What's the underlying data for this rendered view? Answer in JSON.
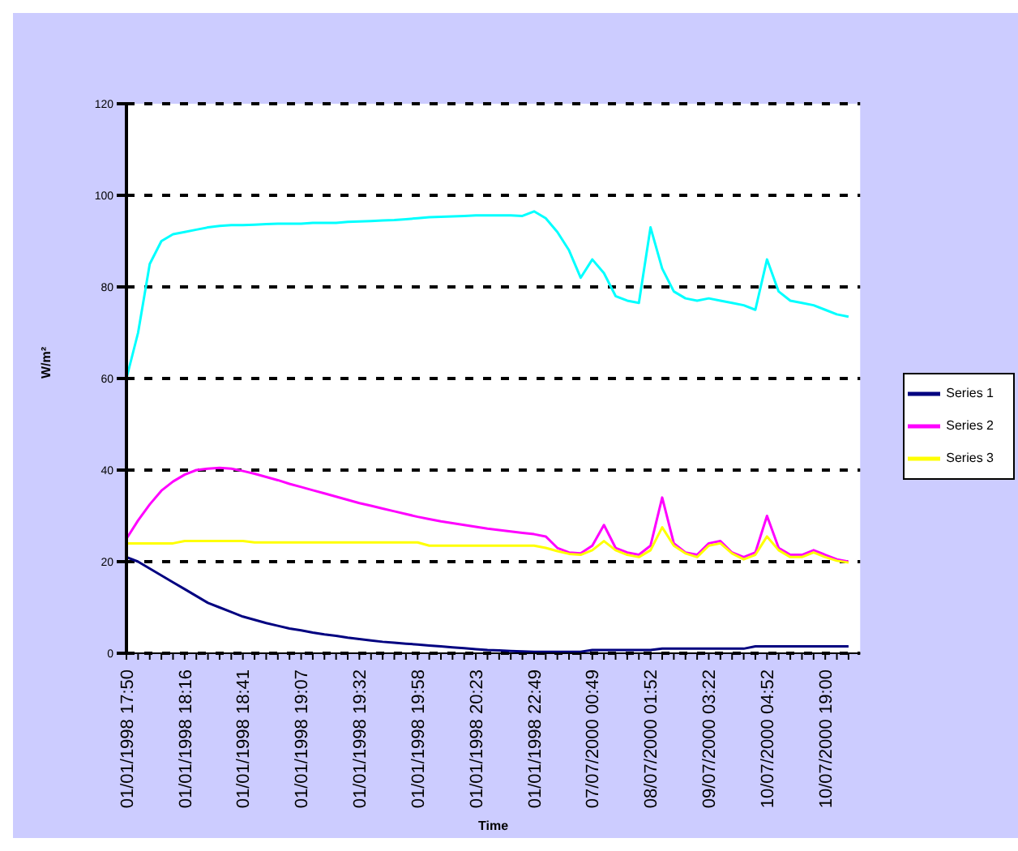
{
  "chart_data": {
    "type": "line",
    "xlabel": "Time",
    "ylabel": "W/m²",
    "categories": [
      "01/01/1998 17:50",
      null,
      null,
      null,
      null,
      "01/01/1998 18:16",
      null,
      null,
      null,
      null,
      "01/01/1998 18:41",
      null,
      null,
      null,
      null,
      "01/01/1998 19:07",
      null,
      null,
      null,
      null,
      "01/01/1998 19:32",
      null,
      null,
      null,
      null,
      "01/01/1998 19:58",
      null,
      null,
      null,
      null,
      "01/01/1998 20:23",
      null,
      null,
      null,
      null,
      "01/01/1998 22:49",
      null,
      null,
      null,
      null,
      "07/07/2000 00:49",
      null,
      null,
      null,
      null,
      "08/07/2000 01:52",
      null,
      null,
      null,
      null,
      "09/07/2000 03:22",
      null,
      null,
      null,
      null,
      "10/07/2000 04:52",
      null,
      null,
      null,
      null,
      "10/07/2000 19:00",
      null,
      null
    ],
    "series": [
      {
        "name": "Series 1",
        "color": "#000080",
        "values": [
          21,
          20,
          18.5,
          17,
          15.5,
          14,
          12.5,
          11,
          10,
          9,
          8,
          7.3,
          6.6,
          6,
          5.4,
          5,
          4.5,
          4.1,
          3.8,
          3.4,
          3.1,
          2.8,
          2.5,
          2.3,
          2.1,
          1.9,
          1.7,
          1.5,
          1.3,
          1.1,
          0.9,
          0.7,
          0.6,
          0.5,
          0.4,
          0.3,
          0.3,
          0.3,
          0.3,
          0.3,
          0.7,
          0.7,
          0.7,
          0.7,
          0.7,
          0.7,
          1,
          1,
          1,
          1,
          1,
          1,
          1,
          1,
          1.5,
          1.5,
          1.5,
          1.5,
          1.5,
          1.5,
          1.5,
          1.5,
          1.5
        ]
      },
      {
        "name": "Series 2",
        "color": "#ff00ff",
        "values": [
          25,
          29,
          32.5,
          35.5,
          37.5,
          39,
          40,
          40.3,
          40.5,
          40.3,
          39.8,
          39.2,
          38.5,
          37.8,
          37,
          36.3,
          35.6,
          34.9,
          34.2,
          33.5,
          32.8,
          32.2,
          31.6,
          31,
          30.4,
          29.8,
          29.3,
          28.8,
          28.4,
          28,
          27.6,
          27.2,
          26.9,
          26.6,
          26.3,
          26,
          25.5,
          23,
          22,
          21.8,
          23.5,
          28,
          23,
          22,
          21.5,
          23.5,
          34,
          24,
          22,
          21.5,
          24,
          24.5,
          22,
          21,
          22,
          30,
          23,
          21.5,
          21.5,
          22.5,
          21.5,
          20.5,
          20
        ]
      },
      {
        "name": "Series 3",
        "color": "#ffff00",
        "values": [
          24,
          24,
          24,
          24,
          24,
          24.5,
          24.5,
          24.5,
          24.5,
          24.5,
          24.5,
          24.2,
          24.2,
          24.2,
          24.2,
          24.2,
          24.2,
          24.2,
          24.2,
          24.2,
          24.2,
          24.2,
          24.2,
          24.2,
          24.2,
          24.2,
          23.5,
          23.5,
          23.5,
          23.5,
          23.5,
          23.5,
          23.5,
          23.5,
          23.5,
          23.5,
          23,
          22.3,
          21.7,
          21.5,
          22.5,
          24.5,
          22.5,
          21.5,
          21,
          22.5,
          27.5,
          23.5,
          21.8,
          21,
          23.5,
          24,
          21.8,
          20.5,
          21.5,
          25.5,
          22.5,
          21,
          21,
          22,
          21,
          20.2,
          19.8
        ]
      },
      {
        "color": "#00ffff",
        "values": [
          60,
          70,
          85,
          90,
          91.5,
          92,
          92.5,
          93,
          93.3,
          93.5,
          93.5,
          93.6,
          93.7,
          93.8,
          93.8,
          93.8,
          94,
          94,
          94,
          94.2,
          94.3,
          94.4,
          94.5,
          94.6,
          94.8,
          95,
          95.2,
          95.3,
          95.4,
          95.5,
          95.6,
          95.6,
          95.6,
          95.6,
          95.5,
          96.5,
          95,
          92,
          88,
          82,
          86,
          83,
          78,
          77,
          76.5,
          93,
          84,
          79,
          77.5,
          77,
          77.5,
          77,
          76.5,
          76,
          75,
          86,
          79,
          77,
          76.5,
          76,
          75,
          74,
          73.5
        ]
      }
    ],
    "ylim": [
      0,
      120
    ],
    "yticks": [
      0,
      20,
      40,
      60,
      80,
      100,
      120
    ],
    "grid": "y",
    "legend": "right",
    "marker": "none"
  }
}
